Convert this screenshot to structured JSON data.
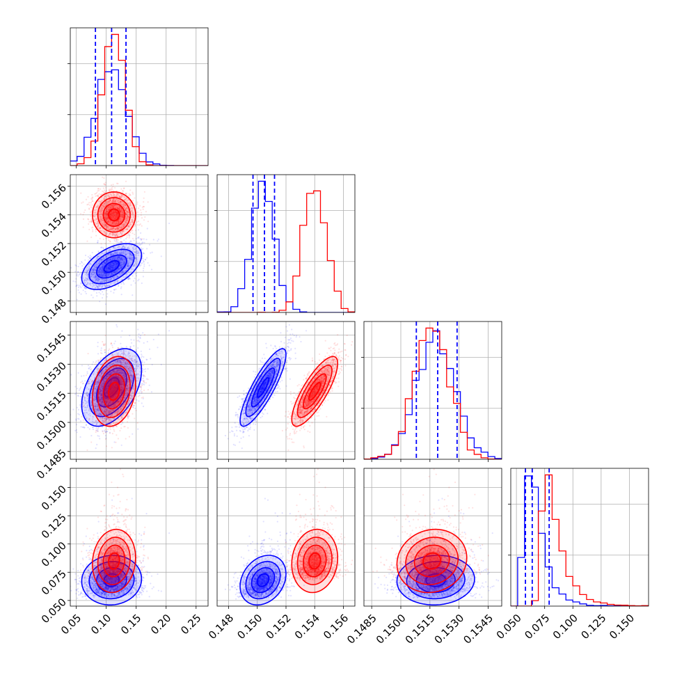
{
  "chart_data": {
    "type": "corner",
    "grid": true,
    "params": [
      {
        "ticks": [
          0.05,
          0.1,
          0.15,
          0.2,
          0.25
        ],
        "tick_labels": [
          "0.05",
          "0.10",
          "0.15",
          "0.20",
          "0.25"
        ],
        "range": [
          0.04,
          0.27
        ],
        "quantiles": [
          0.082,
          0.109,
          0.133
        ]
      },
      {
        "ticks": [
          0.148,
          0.15,
          0.152,
          0.154,
          0.156
        ],
        "tick_labels": [
          "0.148",
          "0.150",
          "0.152",
          "0.154",
          "0.156"
        ],
        "range": [
          0.1472,
          0.1568
        ],
        "quantiles": [
          0.1497,
          0.1505,
          0.1512
        ]
      },
      {
        "ticks": [
          0.1485,
          0.15,
          0.1515,
          0.153,
          0.1545
        ],
        "tick_labels": [
          "0.1485",
          "0.1500",
          "0.1515",
          "0.1530",
          "0.1545"
        ],
        "range": [
          0.1481,
          0.1552
        ],
        "quantiles": [
          0.1508,
          0.1519,
          0.1529
        ]
      },
      {
        "ticks": [
          0.05,
          0.075,
          0.1,
          0.125,
          0.15
        ],
        "tick_labels": [
          "0.050",
          "0.075",
          "0.100",
          "0.125",
          "0.150"
        ],
        "range": [
          0.045,
          0.167
        ],
        "quantiles": [
          0.058,
          0.064,
          0.079
        ]
      }
    ],
    "series": [
      {
        "color": "#0000ff",
        "means": [
          0.109,
          0.1504,
          0.1518,
          0.068
        ],
        "sds": [
          0.025,
          0.0008,
          0.001,
          0.011
        ],
        "skew": [
          0,
          0,
          0,
          0.5
        ],
        "corr": {
          "1,0": 0.5,
          "2,0": 0.45,
          "2,1": 0.85,
          "3,0": 0.05,
          "3,1": 0.25,
          "3,2": 0.05
        }
      },
      {
        "color": "#ff0000",
        "means": [
          0.113,
          0.154,
          0.1516,
          0.085
        ],
        "sds": [
          0.018,
          0.0008,
          0.0009,
          0.014
        ],
        "skew": [
          0,
          0,
          0,
          0.6
        ],
        "corr": {
          "1,0": 0.0,
          "2,0": 0.2,
          "2,1": 0.8,
          "3,0": 0.1,
          "3,1": 0.1,
          "3,2": 0.1
        }
      }
    ]
  }
}
